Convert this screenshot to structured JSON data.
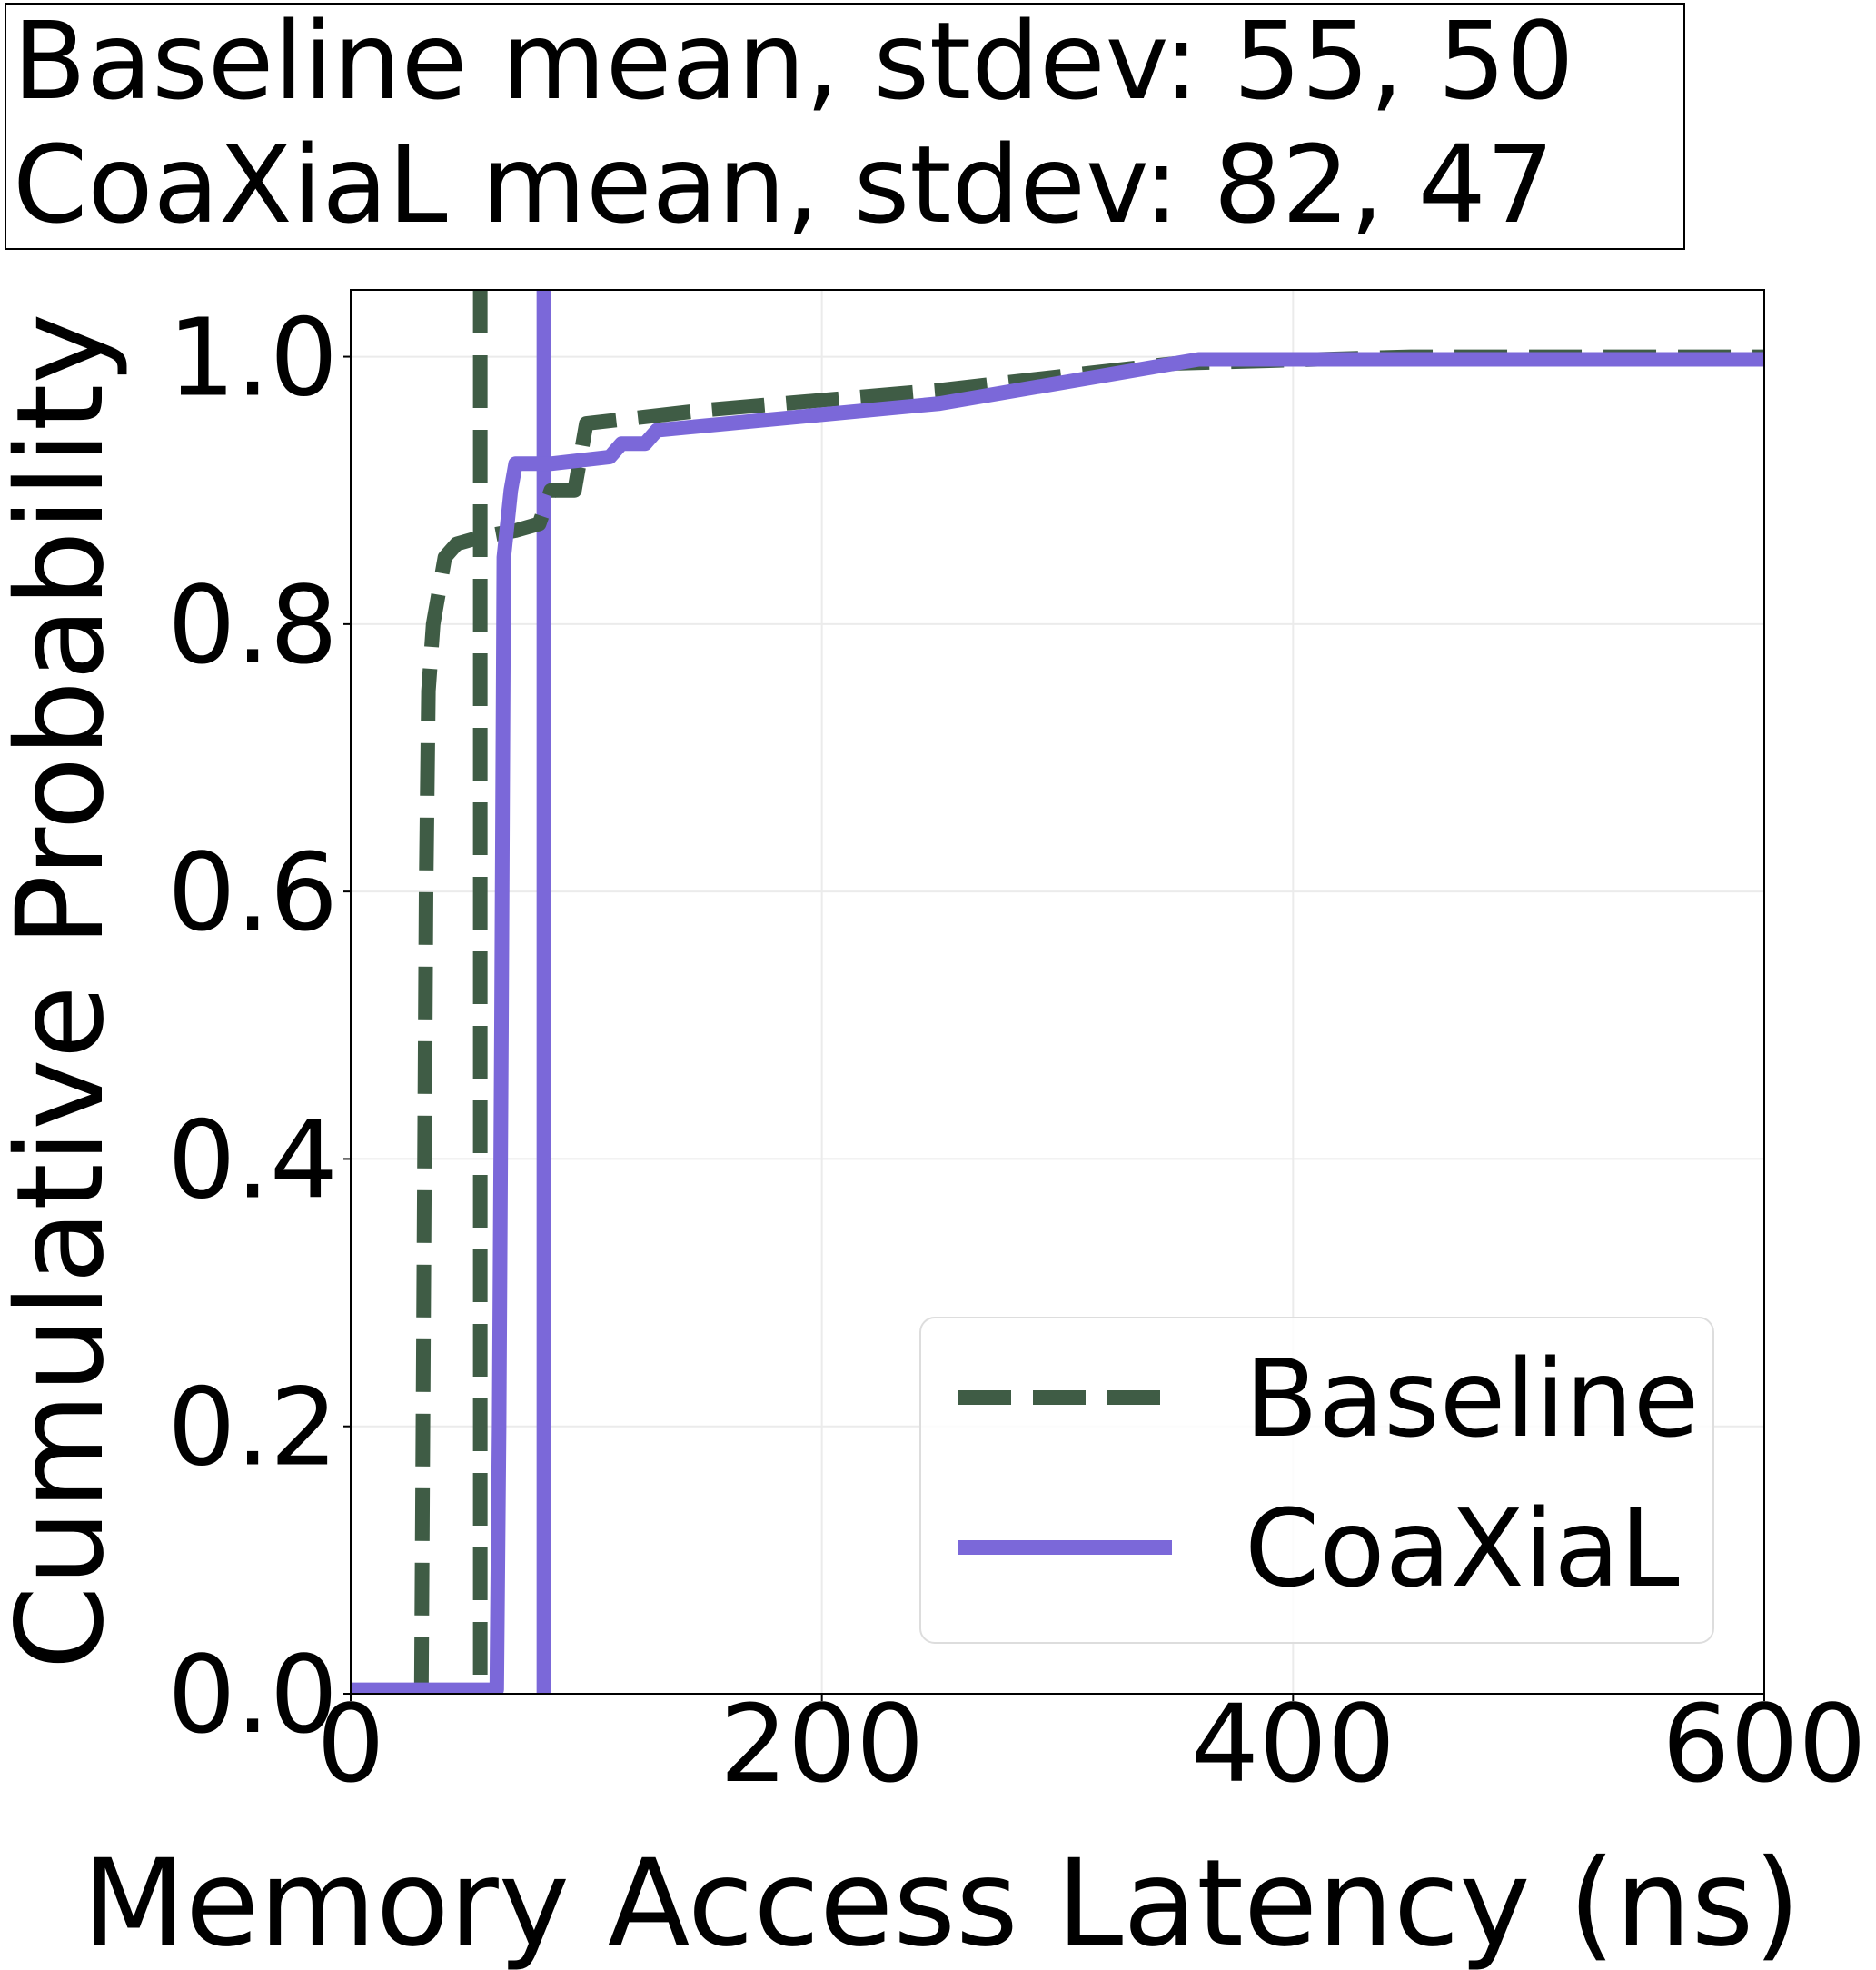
{
  "chart_data": {
    "type": "line",
    "title_lines": [
      "Baseline mean, stdev: 55, 50",
      "CoaXiaL  mean, stdev: 82, 47"
    ],
    "xlabel": "Memory Access Latency (ns)",
    "ylabel": "Cumulative Probability",
    "xlim": [
      0,
      600
    ],
    "ylim": [
      0,
      1.05
    ],
    "x_ticks": [
      0,
      200,
      400,
      600
    ],
    "x_tick_labels": [
      "0",
      "200",
      "400",
      "600"
    ],
    "y_ticks": [
      0,
      0.2,
      0.4,
      0.6,
      0.8,
      1.0
    ],
    "y_tick_labels": [
      "0.0",
      "0.2",
      "0.4",
      "0.6",
      "0.8",
      "1.0"
    ],
    "grid": true,
    "legend": {
      "position": "lower-right",
      "entries": [
        "Baseline",
        "CoaXiaL"
      ]
    },
    "series": [
      {
        "name": "Baseline",
        "color": "#3f5c45",
        "style": "dashed",
        "points": [
          [
            0,
            0
          ],
          [
            30,
            0
          ],
          [
            31,
            0.3
          ],
          [
            32,
            0.6
          ],
          [
            33,
            0.75
          ],
          [
            35,
            0.8
          ],
          [
            40,
            0.85
          ],
          [
            45,
            0.86
          ],
          [
            55,
            0.865
          ],
          [
            70,
            0.87
          ],
          [
            80,
            0.875
          ],
          [
            85,
            0.9
          ],
          [
            95,
            0.9
          ],
          [
            100,
            0.95
          ],
          [
            150,
            0.96
          ],
          [
            250,
            0.975
          ],
          [
            350,
            0.995
          ],
          [
            450,
            1.0
          ],
          [
            600,
            1.0
          ]
        ]
      },
      {
        "name": "CoaXiaL",
        "color": "#7b68d9",
        "style": "solid",
        "points": [
          [
            0,
            0.003
          ],
          [
            50,
            0.003
          ],
          [
            62,
            0.003
          ],
          [
            63,
            0.2
          ],
          [
            64,
            0.5
          ],
          [
            65,
            0.85
          ],
          [
            68,
            0.9
          ],
          [
            70,
            0.92
          ],
          [
            85,
            0.92
          ],
          [
            110,
            0.925
          ],
          [
            115,
            0.935
          ],
          [
            125,
            0.935
          ],
          [
            130,
            0.945
          ],
          [
            250,
            0.965
          ],
          [
            350,
            0.995
          ],
          [
            360,
            0.998
          ],
          [
            600,
            0.998
          ]
        ]
      }
    ],
    "mean_lines": [
      {
        "series": "Baseline",
        "x": 55,
        "color": "#3f5c45",
        "style": "dashed"
      },
      {
        "series": "CoaXiaL",
        "x": 82,
        "color": "#7b68d9",
        "style": "solid"
      }
    ]
  }
}
